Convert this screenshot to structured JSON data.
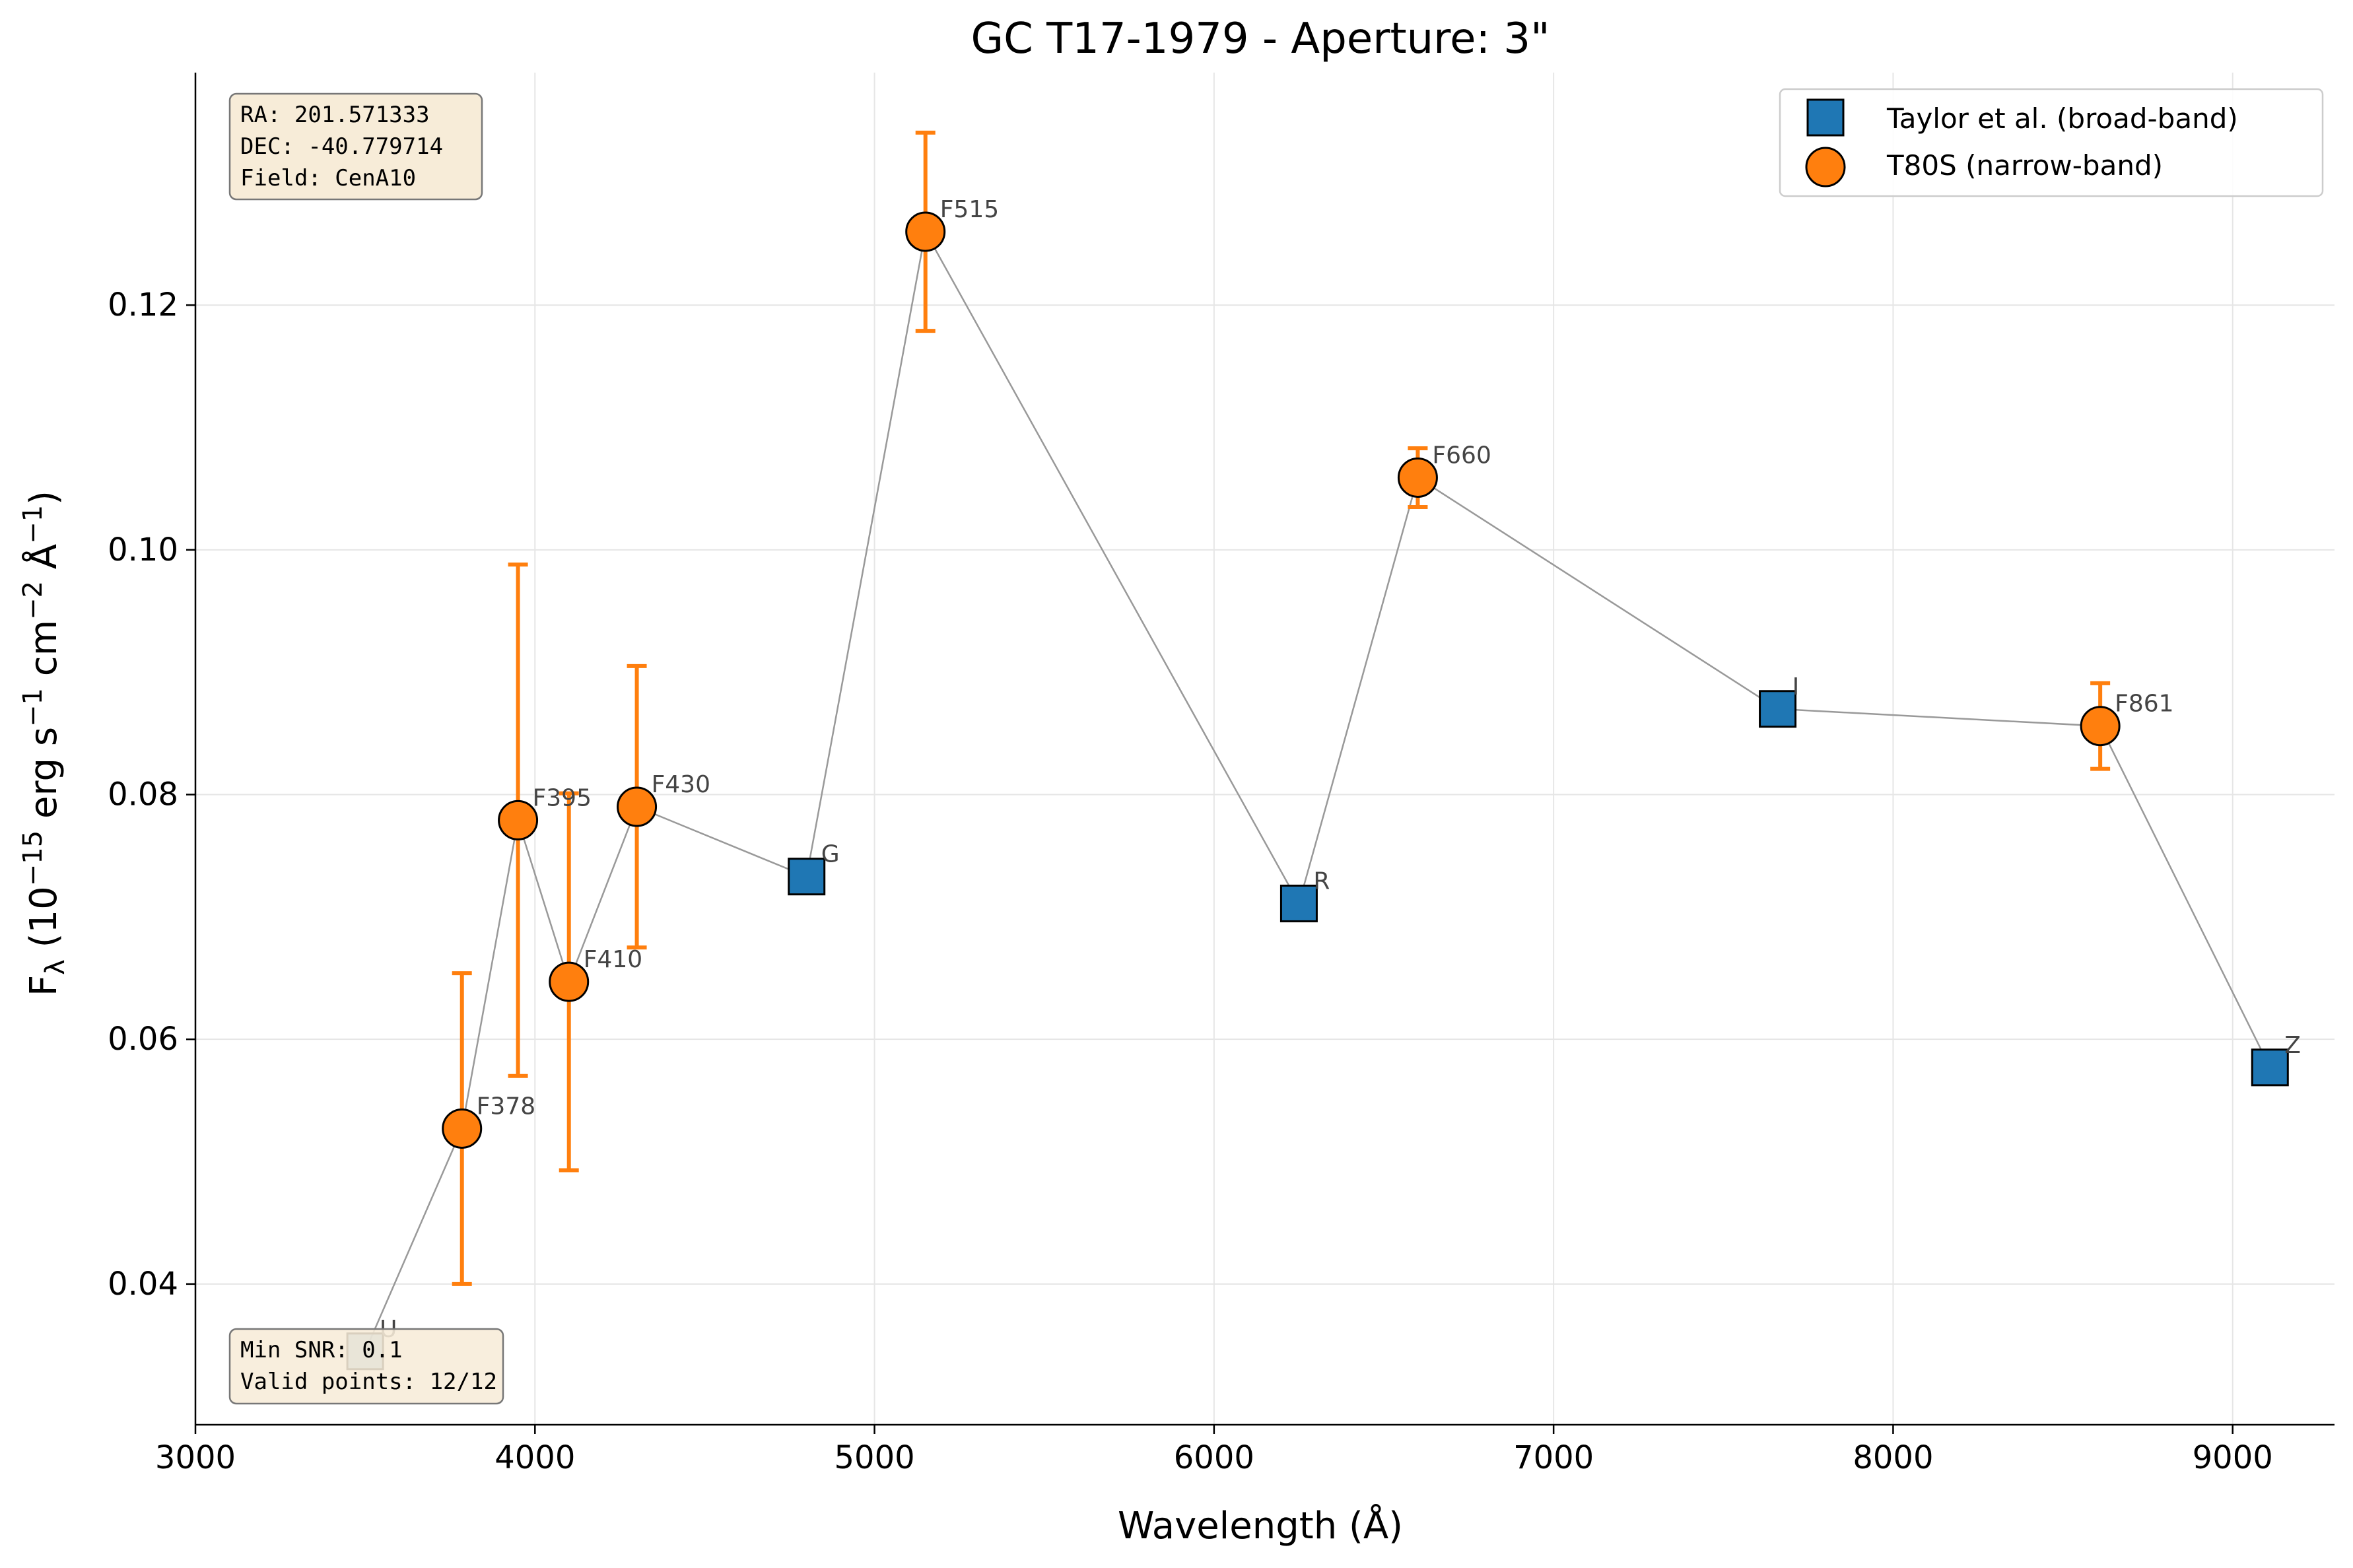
{
  "colors": {
    "broad": "#1f77b4",
    "narrow": "#ff7f0e",
    "errorbar": "#ff7f0e",
    "connector": "#999999",
    "infobox_fill": "#f7ecd8",
    "infobox_stroke": "#777777"
  },
  "chart_data": {
    "type": "scatter",
    "title": "GC T17-1979 - Aperture: 3\"",
    "xlabel": "Wavelength (Å)",
    "ylabel_main": "F",
    "ylabel_sub": "λ",
    "ylabel_rest": " (10",
    "ylabel_exp1": "−15",
    "ylabel_mid1": " erg s",
    "ylabel_exp2": "−1",
    "ylabel_mid2": " cm",
    "ylabel_exp3": "−2",
    "ylabel_mid3": " Å",
    "ylabel_exp4": "−1",
    "ylabel_end": ")",
    "xlim": [
      3000,
      9300
    ],
    "ylim": [
      0.0285,
      0.139
    ],
    "xticks": [
      3000,
      4000,
      5000,
      6000,
      7000,
      8000,
      9000
    ],
    "yticks": [
      0.04,
      0.06,
      0.08,
      0.1,
      0.12
    ],
    "ytick_labels": [
      "0.04",
      "0.06",
      "0.08",
      "0.10",
      "0.12"
    ],
    "grid": true,
    "legend_position": "top-right",
    "series": [
      {
        "name": "Taylor et al. (broad-band)",
        "marker": "square",
        "points": [
          {
            "label": "U",
            "x": 3500,
            "y": 0.0345
          },
          {
            "label": "G",
            "x": 4800,
            "y": 0.0733
          },
          {
            "label": "R",
            "x": 6250,
            "y": 0.0711
          },
          {
            "label": "I",
            "x": 7660,
            "y": 0.087
          },
          {
            "label": "Z",
            "x": 9110,
            "y": 0.0577
          }
        ]
      },
      {
        "name": "T80S (narrow-band)",
        "marker": "circle",
        "points": [
          {
            "label": "F378",
            "x": 3785,
            "y": 0.0527,
            "err": 0.0127
          },
          {
            "label": "F395",
            "x": 3950,
            "y": 0.0779,
            "err": 0.0209
          },
          {
            "label": "F410",
            "x": 4100,
            "y": 0.0647,
            "err": 0.0154
          },
          {
            "label": "F430",
            "x": 4300,
            "y": 0.079,
            "err": 0.0115
          },
          {
            "label": "F515",
            "x": 5150,
            "y": 0.126,
            "err": 0.0081
          },
          {
            "label": "F660",
            "x": 6600,
            "y": 0.1059,
            "err": 0.0024
          },
          {
            "label": "F861",
            "x": 8610,
            "y": 0.0856,
            "err": 0.0035
          }
        ]
      }
    ],
    "connector_order": [
      "U",
      "F378",
      "F395",
      "F410",
      "F430",
      "G",
      "F515",
      "R",
      "F660",
      "I",
      "F861",
      "Z"
    ],
    "info_top": [
      "RA: 201.571333",
      "DEC: -40.779714",
      "Field: CenA10"
    ],
    "info_bottom": [
      "Min SNR: 0.1",
      "Valid points: 12/12"
    ]
  }
}
